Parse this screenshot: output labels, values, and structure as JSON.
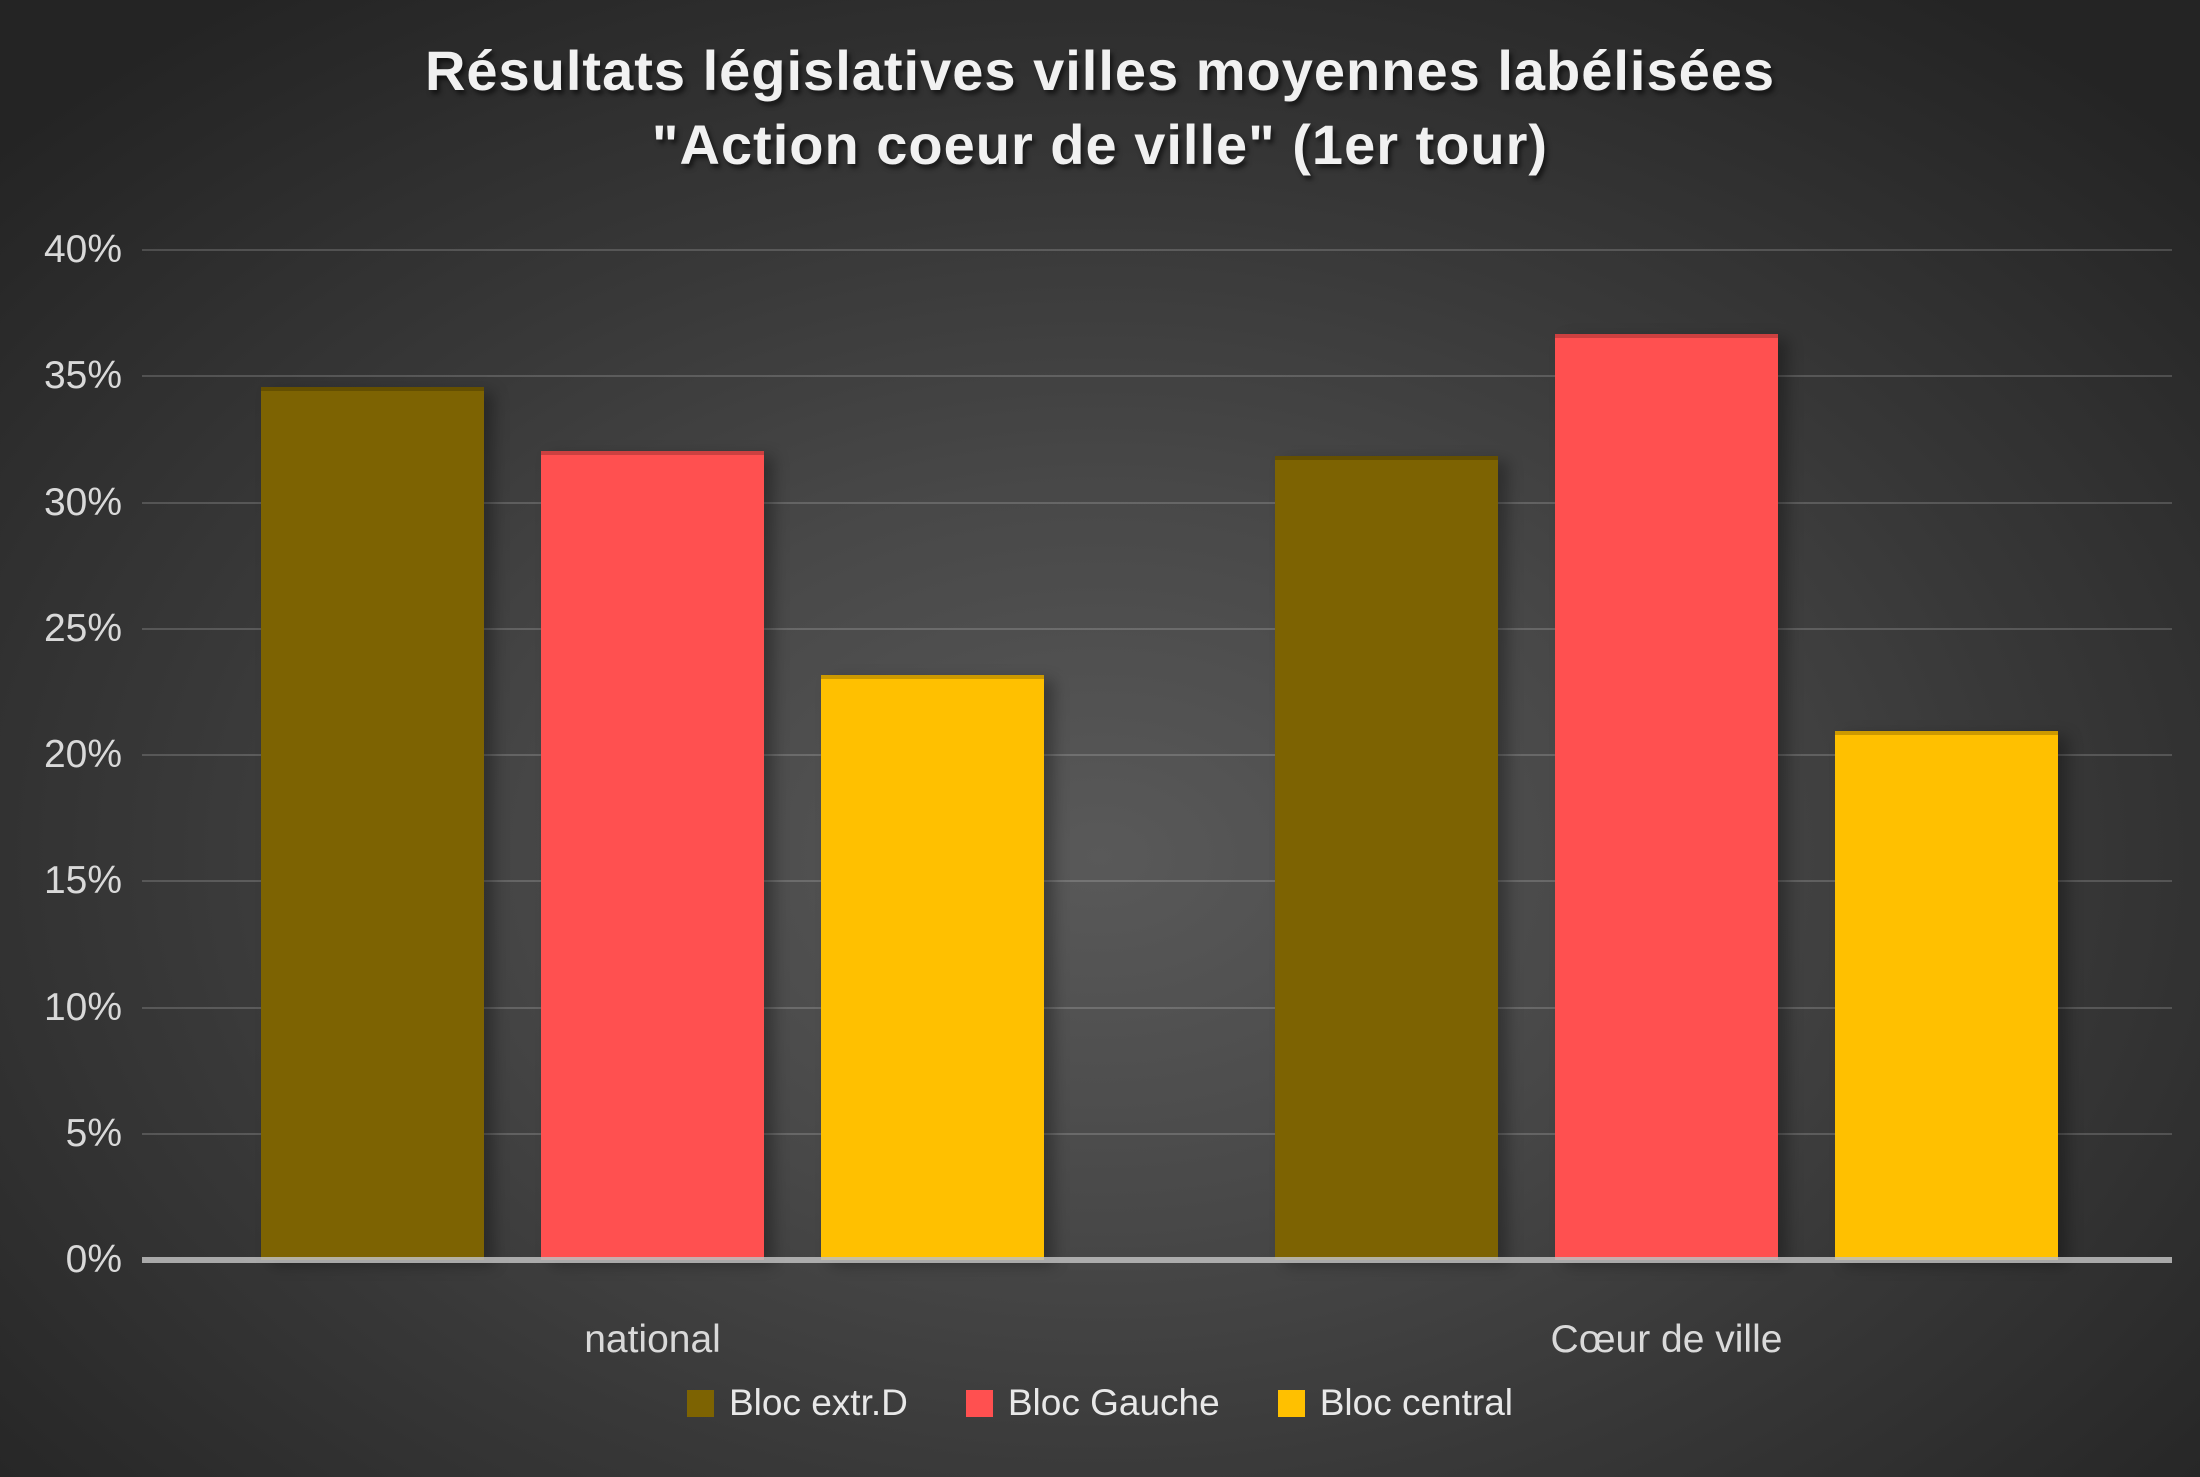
{
  "title": {
    "line1": "Résultats législatives villes moyennes labélisées",
    "line2": "\"Action coeur de ville\" (1er tour)"
  },
  "chart_data": {
    "type": "bar",
    "categories": [
      "national",
      "Cœur de ville"
    ],
    "series": [
      {
        "name": "Bloc extr.D",
        "color": "#7D6302",
        "values": [
          34.4,
          31.7
        ]
      },
      {
        "name": "Bloc Gauche",
        "color": "#FF5050",
        "values": [
          31.9,
          36.5
        ]
      },
      {
        "name": "Bloc central",
        "color": "#FFC000",
        "values": [
          23.0,
          20.8
        ]
      }
    ],
    "yticks": [
      0,
      5,
      10,
      15,
      20,
      25,
      30,
      35,
      40
    ],
    "ytick_suffix": "%",
    "ylim": [
      0,
      40
    ],
    "grid": true,
    "legend_position": "bottom",
    "colors": {
      "background_center": "#595959",
      "background_edge": "#242424",
      "gridline": "rgba(255,255,255,0.17)",
      "axis_line": "#bebebe",
      "tick_text": "#d9d9d9",
      "title_text": "#f1f1f1",
      "legend_text": "#e8e8e8"
    }
  }
}
